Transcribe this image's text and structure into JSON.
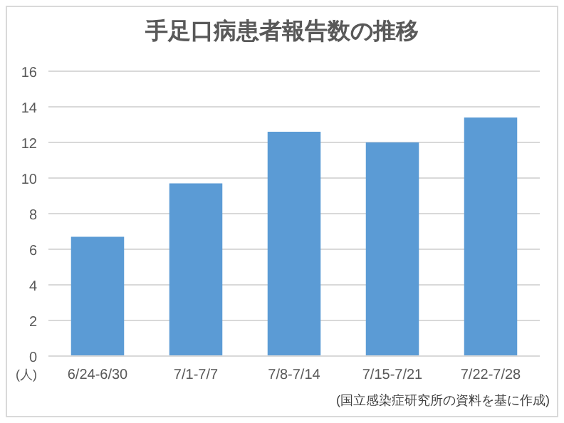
{
  "chart_data": {
    "type": "bar",
    "title": "手足口病患者報告数の推移",
    "ylabel": "(人)",
    "categories": [
      "6/24-6/30",
      "7/1-7/7",
      "7/8-7/14",
      "7/15-7/21",
      "7/22-7/28"
    ],
    "values": [
      6.7,
      9.7,
      12.6,
      12.0,
      13.4
    ],
    "color": "#5b9bd5",
    "ylim": [
      0,
      16
    ],
    "yticks": [
      0,
      2,
      4,
      6,
      8,
      10,
      12,
      14,
      16
    ],
    "grid": "y",
    "annotations": [
      "(国立感染症研究所の資料を基に作成)"
    ]
  }
}
